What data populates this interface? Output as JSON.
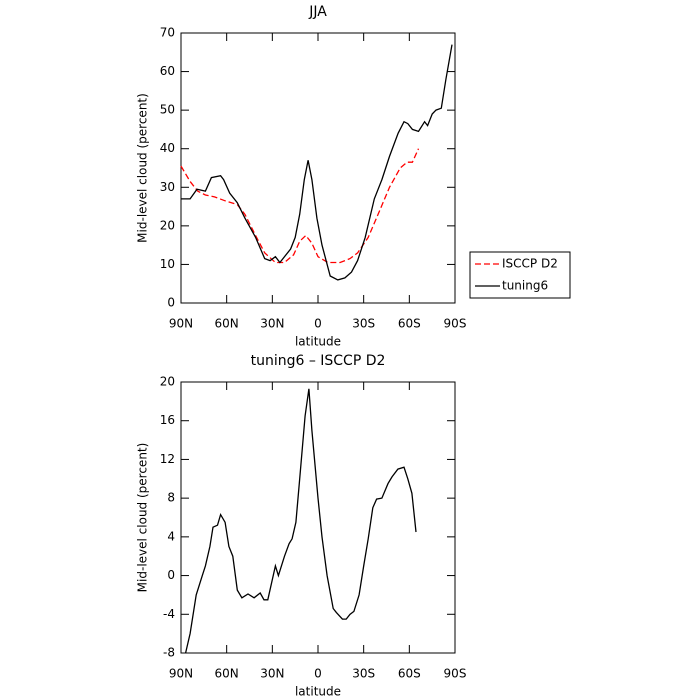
{
  "chart_data": [
    {
      "type": "line",
      "title": "JJA",
      "xlabel": "latitude",
      "ylabel": "Mid-level cloud (percent)",
      "xlim": [
        90,
        -90
      ],
      "ylim": [
        0,
        70
      ],
      "xticks": [
        {
          "value": 90,
          "label": "90N"
        },
        {
          "value": 60,
          "label": "60N"
        },
        {
          "value": 30,
          "label": "30N"
        },
        0,
        {
          "value": -30,
          "label": "30S"
        },
        {
          "value": -60,
          "label": "60S"
        },
        {
          "value": -90,
          "label": "90S"
        }
      ],
      "yticks": [
        0,
        10,
        20,
        30,
        40,
        50,
        60,
        70
      ],
      "legend": "right",
      "series": [
        {
          "name": "ISCCP D2",
          "color": "#ff0000",
          "linestyle": "dashed",
          "x": [
            90,
            84,
            79,
            74,
            68,
            61,
            53,
            48,
            41,
            35,
            28,
            22,
            16,
            12,
            8,
            4,
            0,
            -6.5,
            -14.5,
            -21,
            -26,
            -33,
            -39.5,
            -47,
            -54,
            -58.5,
            -62,
            -66
          ],
          "values": [
            35.5,
            31.5,
            29,
            28,
            27.5,
            26.5,
            25.5,
            23,
            17.5,
            13,
            10.5,
            10.5,
            12.5,
            16,
            17.5,
            15.5,
            12,
            10.5,
            10.5,
            11.5,
            13,
            17,
            23,
            30,
            35,
            36.5,
            36.5,
            40
          ]
        },
        {
          "name": "tuning6",
          "color": "#000000",
          "linestyle": "solid",
          "x": [
            90,
            84,
            79.5,
            74,
            70,
            64,
            62,
            58,
            53,
            48,
            41,
            35,
            31.5,
            28,
            25,
            18,
            15,
            12,
            9,
            6.5,
            4,
            0.7,
            -2.6,
            -8,
            -13,
            -17.7,
            -22,
            -26,
            -31,
            -37,
            -42,
            -47,
            -52.6,
            -56.5,
            -59,
            -62,
            -66,
            -70,
            -72,
            -75,
            -77.5,
            -81,
            -84,
            -88
          ],
          "values": [
            27,
            27,
            29.5,
            29,
            32.5,
            33,
            32,
            28.5,
            26,
            22,
            17,
            11.5,
            11,
            12,
            10.5,
            14,
            17,
            23,
            32,
            37,
            32,
            22,
            15,
            7,
            6,
            6.5,
            8,
            11,
            17,
            27,
            32,
            38,
            44,
            47,
            46.5,
            45,
            44.5,
            47,
            46,
            49,
            50,
            50.5,
            58,
            67
          ]
        }
      ]
    },
    {
      "type": "line",
      "title": "tuning6 – ISCCP D2",
      "xlabel": "latitude",
      "ylabel": "Mid-level cloud (percent)",
      "xlim": [
        90,
        -90
      ],
      "ylim": [
        -8,
        20
      ],
      "xticks": [
        {
          "value": 90,
          "label": "90N"
        },
        {
          "value": 60,
          "label": "60N"
        },
        {
          "value": 30,
          "label": "30N"
        },
        0,
        {
          "value": -30,
          "label": "30S"
        },
        {
          "value": -60,
          "label": "60S"
        },
        {
          "value": -90,
          "label": "90S"
        }
      ],
      "yticks": [
        -8,
        -4,
        0,
        4,
        8,
        12,
        16,
        20
      ],
      "series": [
        {
          "color": "#000000",
          "linestyle": "solid",
          "x": [
            87,
            84,
            80,
            76,
            74,
            71,
            69,
            66,
            64,
            61,
            58.5,
            56,
            53,
            50,
            46,
            42,
            38,
            35.5,
            33,
            28,
            26,
            22,
            19,
            17,
            14.5,
            12,
            8.5,
            6,
            4,
            0,
            -2.6,
            -6,
            -10,
            -12,
            -16,
            -18.5,
            -21,
            -23.6,
            -27,
            -30,
            -33,
            -36,
            -38.5,
            -42,
            -46,
            -48.6,
            -52.5,
            -56.5,
            -59,
            -61.7,
            -64.4
          ],
          "values": [
            -8,
            -6,
            -2,
            0,
            1,
            3,
            5,
            5.2,
            6.3,
            5.5,
            3,
            2,
            -1.5,
            -2.3,
            -1.9,
            -2.3,
            -1.8,
            -2.5,
            -2.5,
            1,
            0,
            2,
            3.3,
            3.8,
            5.5,
            10,
            16.5,
            19.3,
            15,
            8,
            4,
            0,
            -3.4,
            -3.8,
            -4.5,
            -4.5,
            -4,
            -3.7,
            -2,
            1,
            3.8,
            7,
            7.9,
            8,
            9.5,
            10.2,
            11,
            11.2,
            10,
            8.5,
            4.5
          ]
        }
      ]
    }
  ]
}
